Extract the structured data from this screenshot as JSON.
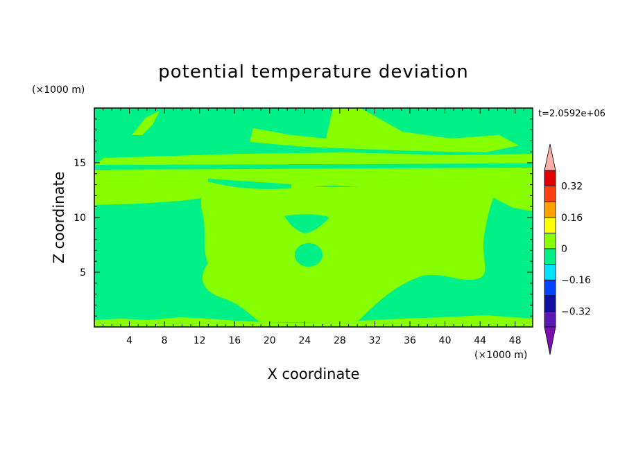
{
  "chart_data": {
    "type": "heatmap",
    "title": "potential temperature deviation",
    "xlabel": "X coordinate",
    "ylabel": "Z coordinate",
    "x_unit": "(×1000 m)",
    "y_unit": "(×1000 m)",
    "time_label": "t=2.0592e+06",
    "xlim": [
      0,
      50
    ],
    "ylim": [
      0,
      20
    ],
    "x_ticks": [
      4,
      8,
      12,
      16,
      20,
      24,
      28,
      32,
      36,
      40,
      44,
      48
    ],
    "y_ticks": [
      5,
      10,
      15
    ],
    "x_tick_labels": [
      "4",
      "8",
      "12",
      "16",
      "20",
      "24",
      "28",
      "32",
      "36",
      "40",
      "44",
      "48"
    ],
    "y_tick_labels": [
      "5",
      "10",
      "15"
    ],
    "colorbar": {
      "levels": [
        -0.4,
        -0.32,
        -0.24,
        -0.16,
        -0.08,
        0,
        0.08,
        0.16,
        0.24,
        0.32,
        0.4
      ],
      "colors": [
        "#5a18b5",
        "#1010a0",
        "#0040ff",
        "#00e0ff",
        "#00f088",
        "#88ff00",
        "#ffff00",
        "#ffa000",
        "#ff4010",
        "#e00000"
      ],
      "under_color": "#7a10b0",
      "over_color": "#f8b0a8",
      "tick_values": [
        -0.32,
        -0.16,
        0,
        0.16,
        0.32
      ],
      "tick_labels": [
        "−0.32",
        "−0.16",
        "0",
        "0.16",
        "0.32"
      ],
      "extend": "both"
    },
    "field_regions": [
      {
        "level": "-0.08..0",
        "color": "#00f088",
        "description_area": "background"
      },
      {
        "level": "0..0.08",
        "color": "#88ff00",
        "area": "central plume and upper layers"
      }
    ]
  }
}
